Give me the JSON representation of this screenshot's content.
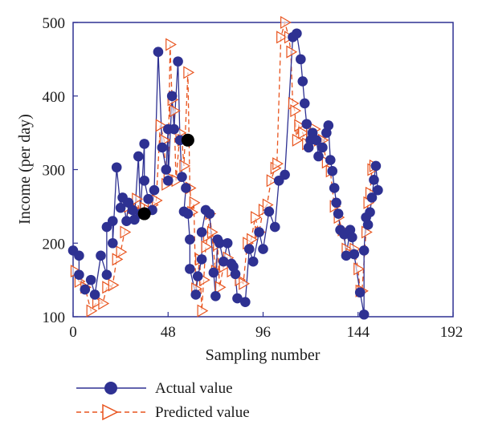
{
  "chart_data": {
    "type": "line",
    "title": "",
    "xlabel": "Sampling number",
    "ylabel": "Income (per day)",
    "xlim": [
      0,
      192
    ],
    "ylim": [
      100,
      500
    ],
    "xticks": [
      0,
      48,
      96,
      144,
      192
    ],
    "yticks": [
      100,
      200,
      300,
      400,
      500
    ],
    "grid": false,
    "legend_position": "bottom-left, below plot",
    "colors": {
      "actual": "#2e3192",
      "predicted": "#e8541e",
      "highlight": "#000000",
      "frame": "#2e3192"
    },
    "series": [
      {
        "name": "Actual value",
        "style": "solid line with filled circle markers",
        "points": [
          [
            0,
            190
          ],
          [
            3,
            183
          ],
          [
            3,
            157
          ],
          [
            6,
            137
          ],
          [
            9,
            150
          ],
          [
            11,
            130
          ],
          [
            14,
            183
          ],
          [
            17,
            157
          ],
          [
            17,
            222
          ],
          [
            20,
            230
          ],
          [
            20,
            200
          ],
          [
            22,
            303
          ],
          [
            24,
            248
          ],
          [
            25,
            262
          ],
          [
            27,
            230
          ],
          [
            28,
            255
          ],
          [
            30,
            245
          ],
          [
            31,
            232
          ],
          [
            33,
            318
          ],
          [
            34,
            240
          ],
          [
            36,
            335
          ],
          [
            36,
            285
          ],
          [
            38,
            260
          ],
          [
            40,
            245
          ],
          [
            41,
            272
          ],
          [
            43,
            460
          ],
          [
            45,
            330
          ],
          [
            47,
            300
          ],
          [
            48,
            355
          ],
          [
            48,
            285
          ],
          [
            50,
            400
          ],
          [
            51,
            355
          ],
          [
            53,
            447
          ],
          [
            54,
            340
          ],
          [
            55,
            290
          ],
          [
            57,
            275
          ],
          [
            56,
            243
          ],
          [
            58,
            240
          ],
          [
            59,
            205
          ],
          [
            59,
            165
          ],
          [
            62,
            130
          ],
          [
            63,
            155
          ],
          [
            65,
            178
          ],
          [
            65,
            215
          ],
          [
            67,
            245
          ],
          [
            69,
            240
          ],
          [
            71,
            160
          ],
          [
            72,
            128
          ],
          [
            73,
            205
          ],
          [
            74,
            200
          ],
          [
            76,
            175
          ],
          [
            78,
            200
          ],
          [
            80,
            172
          ],
          [
            81,
            168
          ],
          [
            82,
            158
          ],
          [
            83,
            125
          ],
          [
            87,
            120
          ],
          [
            89,
            192
          ],
          [
            91,
            175
          ],
          [
            94,
            215
          ],
          [
            96,
            192
          ],
          [
            99,
            243
          ],
          [
            102,
            222
          ],
          [
            104,
            285
          ],
          [
            107,
            293
          ],
          [
            111,
            480
          ],
          [
            113,
            485
          ],
          [
            115,
            450
          ],
          [
            116,
            420
          ],
          [
            117,
            390
          ],
          [
            118,
            362
          ],
          [
            119,
            330
          ],
          [
            120,
            340
          ],
          [
            121,
            350
          ],
          [
            123,
            340
          ],
          [
            124,
            318
          ],
          [
            126,
            330
          ],
          [
            128,
            350
          ],
          [
            129,
            360
          ],
          [
            130,
            313
          ],
          [
            131,
            298
          ],
          [
            132,
            275
          ],
          [
            133,
            255
          ],
          [
            134,
            240
          ],
          [
            135,
            218
          ],
          [
            137,
            212
          ],
          [
            138,
            183
          ],
          [
            140,
            218
          ],
          [
            141,
            208
          ],
          [
            142,
            185
          ],
          [
            145,
            133
          ],
          [
            147,
            103
          ],
          [
            147,
            190
          ],
          [
            148,
            235
          ],
          [
            149,
            225
          ],
          [
            150,
            242
          ],
          [
            151,
            262
          ],
          [
            152,
            286
          ],
          [
            153,
            305
          ],
          [
            154,
            272
          ]
        ]
      },
      {
        "name": "Predicted value",
        "style": "dashed line with open triangle markers",
        "points": [
          [
            1,
            162
          ],
          [
            3,
            148
          ],
          [
            6,
            140
          ],
          [
            9,
            108
          ],
          [
            12,
            120
          ],
          [
            15,
            118
          ],
          [
            17,
            140
          ],
          [
            20,
            143
          ],
          [
            22,
            178
          ],
          [
            24,
            188
          ],
          [
            26,
            215
          ],
          [
            28,
            250
          ],
          [
            30,
            248
          ],
          [
            32,
            260
          ],
          [
            34,
            240
          ],
          [
            36,
            248
          ],
          [
            38,
            245
          ],
          [
            40,
            252
          ],
          [
            42,
            258
          ],
          [
            44,
            360
          ],
          [
            46,
            340
          ],
          [
            47,
            280
          ],
          [
            48,
            290
          ],
          [
            49,
            470
          ],
          [
            50,
            395
          ],
          [
            51,
            380
          ],
          [
            52,
            285
          ],
          [
            54,
            350
          ],
          [
            55,
            340
          ],
          [
            56,
            305
          ],
          [
            58,
            432
          ],
          [
            59,
            275
          ],
          [
            60,
            242
          ],
          [
            61,
            255
          ],
          [
            62,
            138
          ],
          [
            64,
            178
          ],
          [
            65,
            108
          ],
          [
            66,
            150
          ],
          [
            67,
            195
          ],
          [
            68,
            210
          ],
          [
            69,
            240
          ],
          [
            70,
            215
          ],
          [
            72,
            162
          ],
          [
            73,
            198
          ],
          [
            74,
            140
          ],
          [
            76,
            168
          ],
          [
            78,
            180
          ],
          [
            80,
            162
          ],
          [
            84,
            150
          ],
          [
            86,
            145
          ],
          [
            88,
            200
          ],
          [
            90,
            205
          ],
          [
            92,
            235
          ],
          [
            94,
            215
          ],
          [
            96,
            245
          ],
          [
            98,
            252
          ],
          [
            100,
            285
          ],
          [
            102,
            302
          ],
          [
            103,
            308
          ],
          [
            105,
            480
          ],
          [
            107,
            500
          ],
          [
            109,
            480
          ],
          [
            110,
            460
          ],
          [
            111,
            390
          ],
          [
            112,
            380
          ],
          [
            113,
            340
          ],
          [
            114,
            360
          ],
          [
            116,
            350
          ],
          [
            118,
            335
          ],
          [
            120,
            350
          ],
          [
            122,
            355
          ],
          [
            124,
            340
          ],
          [
            126,
            340
          ],
          [
            128,
            310
          ],
          [
            130,
            298
          ],
          [
            132,
            250
          ],
          [
            134,
            235
          ],
          [
            136,
            218
          ],
          [
            138,
            192
          ],
          [
            140,
            185
          ],
          [
            142,
            192
          ],
          [
            144,
            165
          ],
          [
            145,
            135
          ],
          [
            146,
            135
          ],
          [
            148,
            215
          ],
          [
            149,
            255
          ],
          [
            150,
            268
          ],
          [
            151,
            300
          ],
          [
            152,
            305
          ]
        ]
      }
    ],
    "highlight_points": [
      [
        36,
        240
      ],
      [
        58,
        340
      ]
    ],
    "legend": [
      "Actual value",
      "Predicted value"
    ]
  }
}
